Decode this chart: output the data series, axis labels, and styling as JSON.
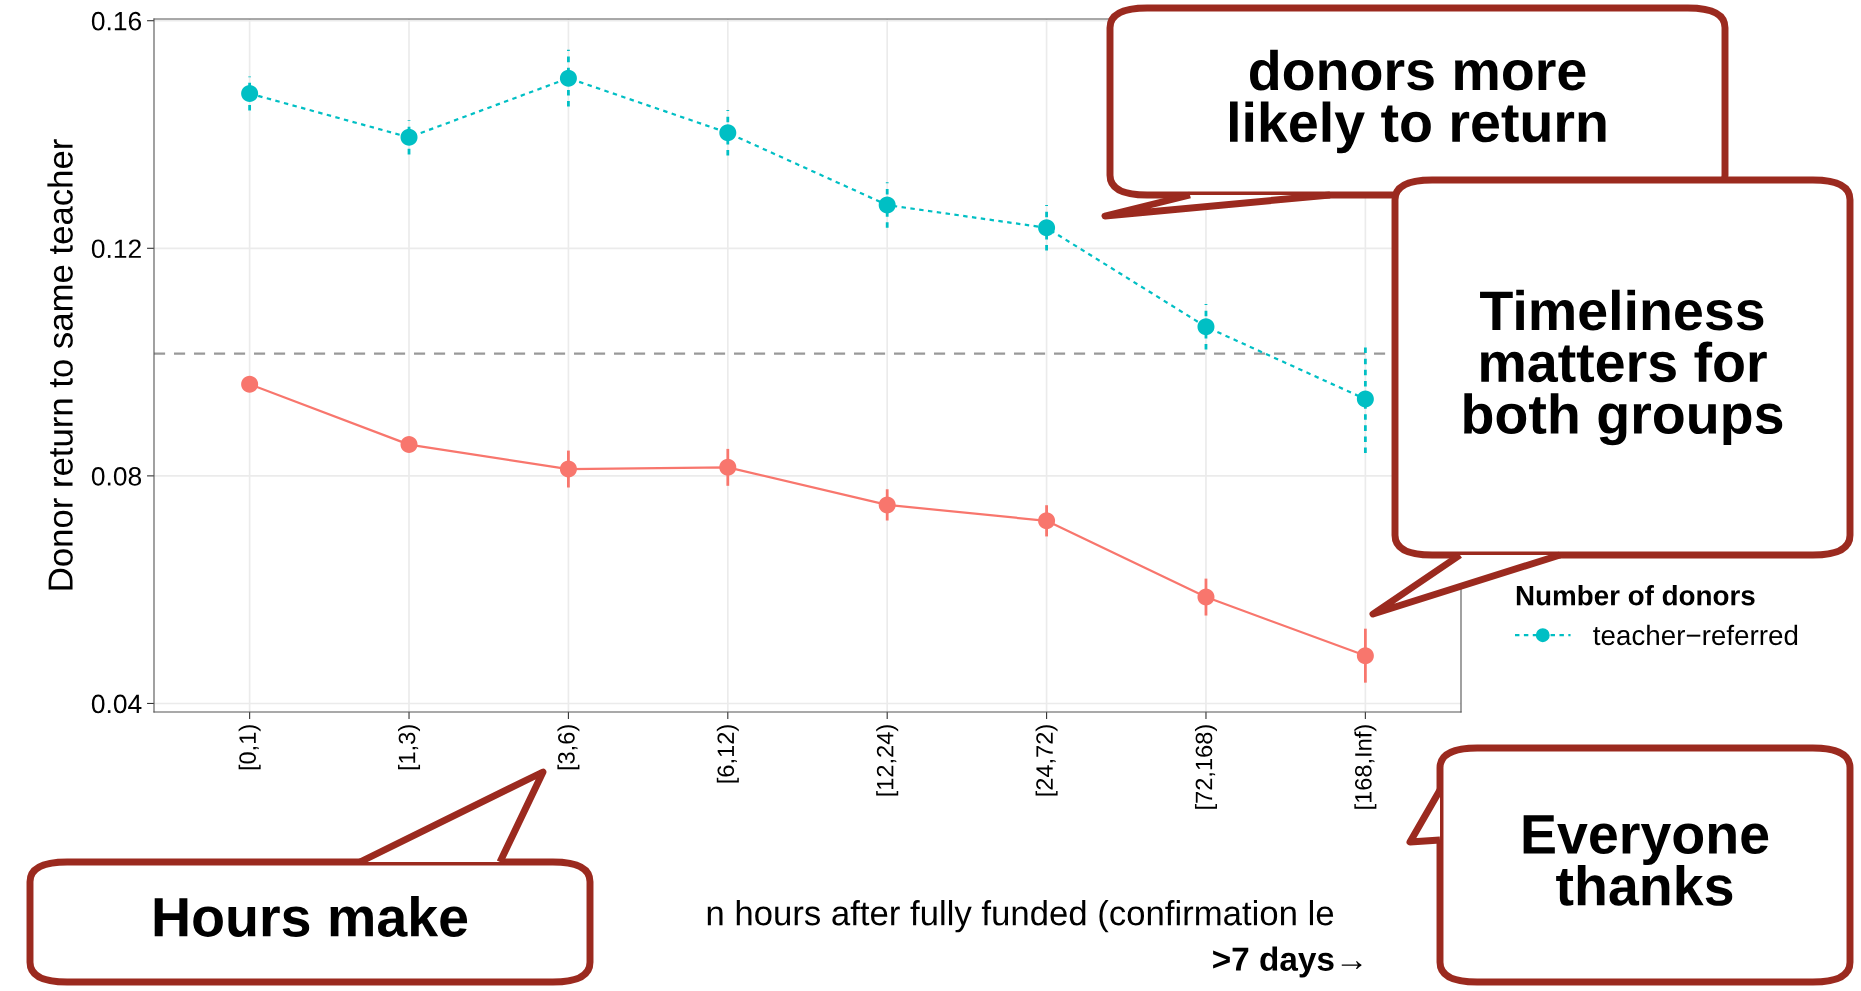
{
  "chart_data": {
    "type": "line",
    "categories": [
      "[0,1)",
      "[1,3)",
      "[3,6)",
      "[6,12)",
      "[12,24)",
      "[24,72)",
      "[72,168)",
      "[168,Inf)"
    ],
    "series": [
      {
        "color": "#f8766d",
        "line_style": "solid",
        "values": [
          0.0961,
          0.0855,
          0.0812,
          0.0815,
          0.0749,
          0.0721,
          0.0587,
          0.0484
        ],
        "errors": [
          null,
          null,
          0.003,
          0.003,
          0.0025,
          0.0025,
          0.003,
          0.0045
        ]
      },
      {
        "name": "teacher−referred",
        "color": "#00bfc4",
        "line_style": "dashed",
        "values": [
          0.1472,
          0.1395,
          0.1499,
          0.1403,
          0.1276,
          0.1236,
          0.1062,
          0.0935
        ],
        "errors": [
          0.003,
          0.003,
          0.005,
          0.004,
          0.004,
          0.004,
          0.004,
          0.0095
        ]
      }
    ],
    "ylabel": "Donor return to same teacher",
    "xlabel": "n hours after fully funded (confirmation le",
    "legend_title": "Number of donors",
    "legend": "right",
    "ylim": [
      0.0385,
      0.1603
    ],
    "yticks": [
      0.04,
      0.08,
      0.12,
      0.16
    ],
    "grid": true,
    "marker": "circle",
    "ref_lines": [
      {
        "axis": "y",
        "value": 0.1015,
        "color": "#999999",
        "line_style": "dashed"
      }
    ],
    "annotations": [
      "donors more\nlikely to return",
      "Timeliness\nmatters for\nboth groups",
      "Hours make",
      "Everyone\nthanks",
      ">7 days→"
    ]
  }
}
